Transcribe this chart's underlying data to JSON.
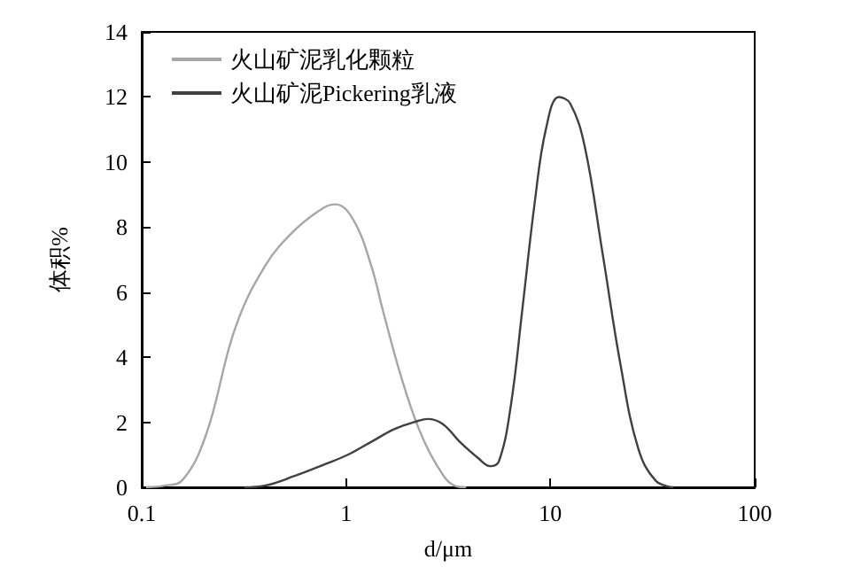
{
  "chart_data": {
    "type": "line",
    "xlabel": "d/μm",
    "ylabel": "体积%",
    "log": "x",
    "xlim": [
      0.1,
      100
    ],
    "xticks": [
      0.1,
      1,
      10,
      100
    ],
    "ylim": [
      0,
      14
    ],
    "yticks": [
      0,
      2,
      4,
      6,
      8,
      10,
      12,
      14
    ],
    "grid": false,
    "legend": "top left",
    "marker": "none",
    "line_style": "solid",
    "series": [
      {
        "name": "火山矿泥乳化颗粒",
        "color": "#a6a6a6",
        "x": [
          0.105,
          0.129,
          0.157,
          0.206,
          0.287,
          0.401,
          0.56,
          0.78,
          0.89,
          1.09,
          1.33,
          1.52,
          1.86,
          2.27,
          2.77,
          3.39,
          3.87
        ],
        "values": [
          0,
          0.05,
          0.2,
          1.6,
          4.9,
          6.8,
          7.9,
          8.6,
          8.7,
          8.2,
          6.8,
          5.4,
          3.4,
          1.8,
          0.7,
          0.05,
          0
        ]
      },
      {
        "name": "火山矿泥Pickering乳液",
        "color": "#404040",
        "x": [
          0.317,
          0.4,
          0.56,
          0.78,
          1.02,
          1.33,
          1.74,
          2.27,
          2.5,
          2.97,
          3.6,
          4.43,
          5.06,
          5.6,
          6.4,
          7.3,
          8.4,
          9.5,
          11.0,
          12.5,
          14.7,
          18,
          22,
          26.9,
          32.8,
          40.1
        ],
        "values": [
          0,
          0.05,
          0.35,
          0.7,
          1.0,
          1.4,
          1.8,
          2.05,
          2.1,
          1.95,
          1.4,
          0.9,
          0.65,
          0.8,
          2.5,
          5.5,
          8.8,
          11.0,
          12.0,
          11.8,
          10.5,
          7.2,
          3.8,
          1.2,
          0.2,
          0
        ]
      }
    ]
  }
}
